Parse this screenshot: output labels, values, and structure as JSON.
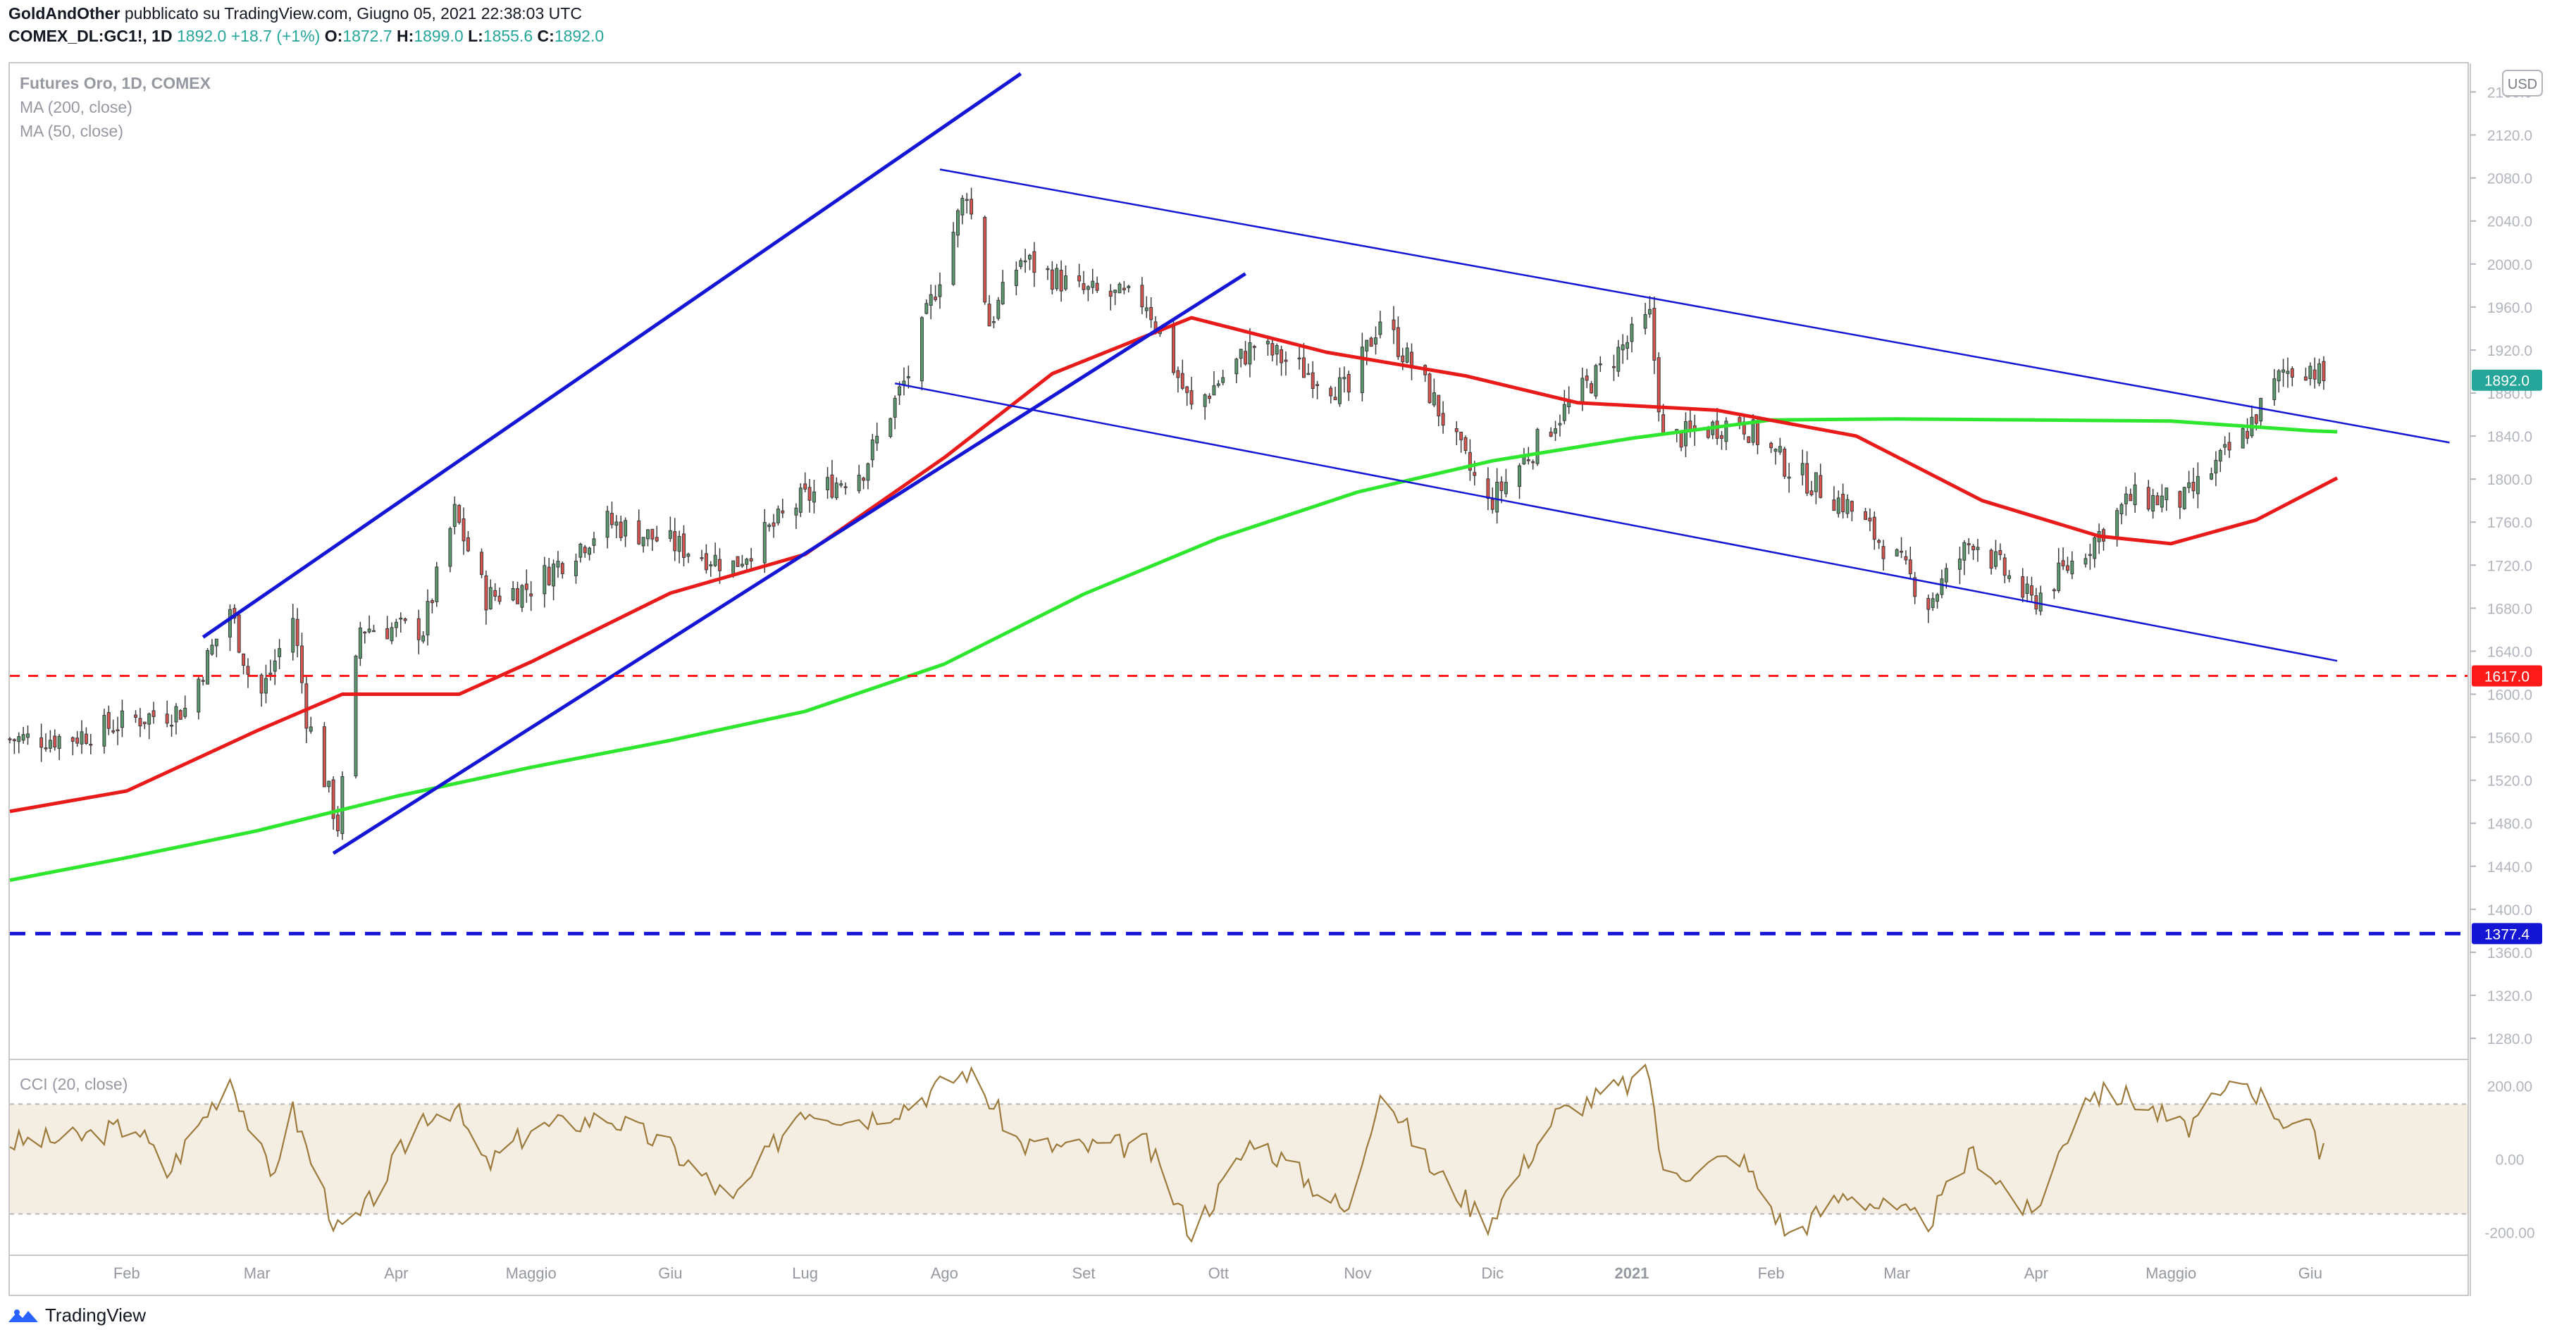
{
  "header": {
    "line1": {
      "author": "GoldAndOther",
      "text": "pubblicato su TradingView.com, Giugno 05, 2021 22:38:03 UTC"
    },
    "line2": {
      "symbol": "COMEX_DL:GC1!, 1D",
      "last": "1892.0",
      "change": "+18.7 (+1%)",
      "o_label": "O:",
      "o": "1872.7",
      "h_label": "H:",
      "h": "1899.0",
      "l_label": "L:",
      "l": "1855.6",
      "c_label": "C:",
      "c": "1892.0"
    }
  },
  "legend": {
    "title": "Futures Oro, 1D, COMEX",
    "ma200": "MA (200, close)",
    "ma50": "MA (50, close)",
    "cci": "CCI (20, close)"
  },
  "currency": "USD",
  "footer": {
    "brand": "TradingView"
  },
  "colors": {
    "up": "#26a69a",
    "up_body": "#5b9a6e",
    "down_body": "#d9534f",
    "ma50": "#e81a1a",
    "ma200": "#2ee62e",
    "trend": "#1515d6",
    "cci": "#9c7a3c",
    "cci_band": "#f4ede1",
    "support_red": "#ff1a1a",
    "support_blue": "#1515d6"
  },
  "chart_data": [
    {
      "type": "candlestick",
      "title": "Futures Oro, 1D, COMEX",
      "x_ticks": [
        "Feb",
        "Mar",
        "Apr",
        "Maggio",
        "Giu",
        "Lug",
        "Ago",
        "Set",
        "Ott",
        "Nov",
        "Dic",
        "2021",
        "Feb",
        "Mar",
        "Apr",
        "Maggio",
        "Giu"
      ],
      "x_tick_dates": [
        "2020-02-01",
        "2020-03-01",
        "2020-04-01",
        "2020-05-01",
        "2020-06-01",
        "2020-07-01",
        "2020-08-01",
        "2020-09-01",
        "2020-10-01",
        "2020-11-01",
        "2020-12-01",
        "2021-01-01",
        "2021-02-01",
        "2021-03-01",
        "2021-04-01",
        "2021-05-01",
        "2021-06-01"
      ],
      "x_range": [
        "2020-01-06",
        "2021-07-06"
      ],
      "y_ticks": [
        1280,
        1320,
        1360,
        1400,
        1440,
        1480,
        1520,
        1560,
        1600,
        1640,
        1680,
        1720,
        1760,
        1800,
        1840,
        1880,
        1920,
        1960,
        2000,
        2040,
        2080,
        2120,
        2160
      ],
      "ylim": [
        1263,
        2180
      ],
      "price_labels": [
        {
          "value": "1892.0",
          "price": 1892.0,
          "color": "#26a69a"
        },
        {
          "value": "1617.0",
          "price": 1617.0,
          "color": "#ff1a1a"
        },
        {
          "value": "1377.4",
          "price": 1377.4,
          "color": "#1515d6"
        }
      ],
      "horizontal_levels": [
        {
          "price": 1617.0,
          "style": "dashed",
          "color": "#ff1a1a"
        },
        {
          "price": 1377.4,
          "style": "dashed",
          "color": "#1515d6"
        }
      ],
      "trendlines": [
        {
          "from": [
            "2020-02-18",
            1653
          ],
          "to": [
            "2020-08-18",
            2177
          ],
          "color": "#1515d6",
          "width": "thick"
        },
        {
          "from": [
            "2020-03-18",
            1452
          ],
          "to": [
            "2020-10-07",
            1991
          ],
          "color": "#1515d6",
          "width": "thick"
        },
        {
          "from": [
            "2020-07-31",
            2088
          ],
          "to": [
            "2021-07-02",
            1834
          ],
          "color": "#1515d6",
          "width": "thin"
        },
        {
          "from": [
            "2020-07-21",
            1889
          ],
          "to": [
            "2021-06-07",
            1631
          ],
          "color": "#1515d6",
          "width": "thin"
        }
      ],
      "ma200": [
        [
          "2020-01-06",
          1427
        ],
        [
          "2020-02-01",
          1448
        ],
        [
          "2020-03-01",
          1473
        ],
        [
          "2020-04-01",
          1505
        ],
        [
          "2020-05-01",
          1532
        ],
        [
          "2020-06-01",
          1557
        ],
        [
          "2020-07-01",
          1584
        ],
        [
          "2020-08-01",
          1628
        ],
        [
          "2020-09-01",
          1693
        ],
        [
          "2020-10-01",
          1745
        ],
        [
          "2020-11-01",
          1788
        ],
        [
          "2020-12-01",
          1817
        ],
        [
          "2021-01-01",
          1838
        ],
        [
          "2021-02-01",
          1855
        ],
        [
          "2021-03-01",
          1856
        ],
        [
          "2021-04-01",
          1855
        ],
        [
          "2021-05-01",
          1854
        ],
        [
          "2021-06-01",
          1845
        ],
        [
          "2021-06-07",
          1844
        ]
      ],
      "ma50": [
        [
          "2020-01-06",
          1491
        ],
        [
          "2020-02-01",
          1510
        ],
        [
          "2020-03-01",
          1566
        ],
        [
          "2020-03-20",
          1600
        ],
        [
          "2020-04-15",
          1600
        ],
        [
          "2020-05-01",
          1630
        ],
        [
          "2020-06-01",
          1694
        ],
        [
          "2020-07-01",
          1730
        ],
        [
          "2020-08-01",
          1820
        ],
        [
          "2020-08-25",
          1898
        ],
        [
          "2020-09-25",
          1950
        ],
        [
          "2020-10-25",
          1918
        ],
        [
          "2020-11-25",
          1896
        ],
        [
          "2020-12-20",
          1871
        ],
        [
          "2021-01-20",
          1864
        ],
        [
          "2021-02-20",
          1840
        ],
        [
          "2021-03-20",
          1780
        ],
        [
          "2021-04-15",
          1747
        ],
        [
          "2021-05-01",
          1740
        ],
        [
          "2021-05-20",
          1762
        ],
        [
          "2021-06-07",
          1801
        ]
      ],
      "close_path": [
        [
          "2020-01-06",
          1558
        ],
        [
          "2020-01-20",
          1560
        ],
        [
          "2020-02-03",
          1577
        ],
        [
          "2020-02-14",
          1586
        ],
        [
          "2020-02-24",
          1680
        ],
        [
          "2020-03-01",
          1590
        ],
        [
          "2020-03-09",
          1672
        ],
        [
          "2020-03-12",
          1580
        ],
        [
          "2020-03-19",
          1478
        ],
        [
          "2020-03-24",
          1662
        ],
        [
          "2020-04-07",
          1660
        ],
        [
          "2020-04-14",
          1768
        ],
        [
          "2020-04-21",
          1690
        ],
        [
          "2020-05-01",
          1700
        ],
        [
          "2020-05-18",
          1760
        ],
        [
          "2020-06-01",
          1740
        ],
        [
          "2020-06-15",
          1720
        ],
        [
          "2020-06-30",
          1780
        ],
        [
          "2020-07-14",
          1810
        ],
        [
          "2020-07-24",
          1898
        ],
        [
          "2020-08-06",
          2070
        ],
        [
          "2020-08-11",
          1945
        ],
        [
          "2020-08-18",
          2005
        ],
        [
          "2020-08-31",
          1975
        ],
        [
          "2020-09-15",
          1965
        ],
        [
          "2020-09-25",
          1865
        ],
        [
          "2020-10-09",
          1925
        ],
        [
          "2020-10-30",
          1880
        ],
        [
          "2020-11-06",
          1950
        ],
        [
          "2020-11-17",
          1880
        ],
        [
          "2020-11-30",
          1776
        ],
        [
          "2020-12-15",
          1855
        ],
        [
          "2021-01-05",
          1950
        ],
        [
          "2021-01-08",
          1835
        ],
        [
          "2021-01-25",
          1855
        ],
        [
          "2021-02-05",
          1810
        ],
        [
          "2021-02-18",
          1775
        ],
        [
          "2021-03-01",
          1725
        ],
        [
          "2021-03-08",
          1685
        ],
        [
          "2021-03-18",
          1745
        ],
        [
          "2021-03-31",
          1685
        ],
        [
          "2021-04-12",
          1735
        ],
        [
          "2021-04-22",
          1782
        ],
        [
          "2021-05-04",
          1780
        ],
        [
          "2021-05-17",
          1840
        ],
        [
          "2021-05-26",
          1900
        ],
        [
          "2021-06-01",
          1905
        ],
        [
          "2021-06-04",
          1892
        ]
      ]
    },
    {
      "type": "line",
      "title": "CCI (20, close)",
      "y_ticks": [
        200,
        0,
        -200
      ],
      "y_tick_labels": [
        "200.00",
        "0.00",
        "-200.00"
      ],
      "ylim": [
        -255,
        270
      ],
      "band": [
        -150,
        150
      ],
      "series": [
        {
          "values": [
            [
              "2020-01-06",
              45
            ],
            [
              "2020-01-20",
              55
            ],
            [
              "2020-02-03",
              92
            ],
            [
              "2020-02-10",
              -40
            ],
            [
              "2020-02-24",
              225
            ],
            [
              "2020-03-04",
              -50
            ],
            [
              "2020-03-09",
              130
            ],
            [
              "2020-03-19",
              -198
            ],
            [
              "2020-03-24",
              -160
            ],
            [
              "2020-04-07",
              120
            ],
            [
              "2020-04-14",
              140
            ],
            [
              "2020-04-21",
              -20
            ],
            [
              "2020-05-01",
              80
            ],
            [
              "2020-05-18",
              115
            ],
            [
              "2020-06-01",
              30
            ],
            [
              "2020-06-15",
              -120
            ],
            [
              "2020-06-30",
              140
            ],
            [
              "2020-07-14",
              110
            ],
            [
              "2020-07-24",
              150
            ],
            [
              "2020-08-06",
              240
            ],
            [
              "2020-08-11",
              160
            ],
            [
              "2020-08-18",
              40
            ],
            [
              "2020-08-31",
              30
            ],
            [
              "2020-09-15",
              40
            ],
            [
              "2020-09-25",
              -200
            ],
            [
              "2020-10-09",
              60
            ],
            [
              "2020-10-30",
              -150
            ],
            [
              "2020-11-06",
              200
            ],
            [
              "2020-11-17",
              -20
            ],
            [
              "2020-11-30",
              -170
            ],
            [
              "2020-12-15",
              120
            ],
            [
              "2021-01-05",
              230
            ],
            [
              "2021-01-08",
              -50
            ],
            [
              "2021-01-25",
              10
            ],
            [
              "2021-02-05",
              -210
            ],
            [
              "2021-02-18",
              -90
            ],
            [
              "2021-03-01",
              -150
            ],
            [
              "2021-03-08",
              -170
            ],
            [
              "2021-03-18",
              20
            ],
            [
              "2021-03-31",
              -160
            ],
            [
              "2021-04-12",
              180
            ],
            [
              "2021-04-22",
              170
            ],
            [
              "2021-05-04",
              80
            ],
            [
              "2021-05-17",
              220
            ],
            [
              "2021-05-26",
              110
            ],
            [
              "2021-06-01",
              80
            ],
            [
              "2021-06-03",
              10
            ],
            [
              "2021-06-04",
              45
            ]
          ]
        }
      ]
    }
  ]
}
